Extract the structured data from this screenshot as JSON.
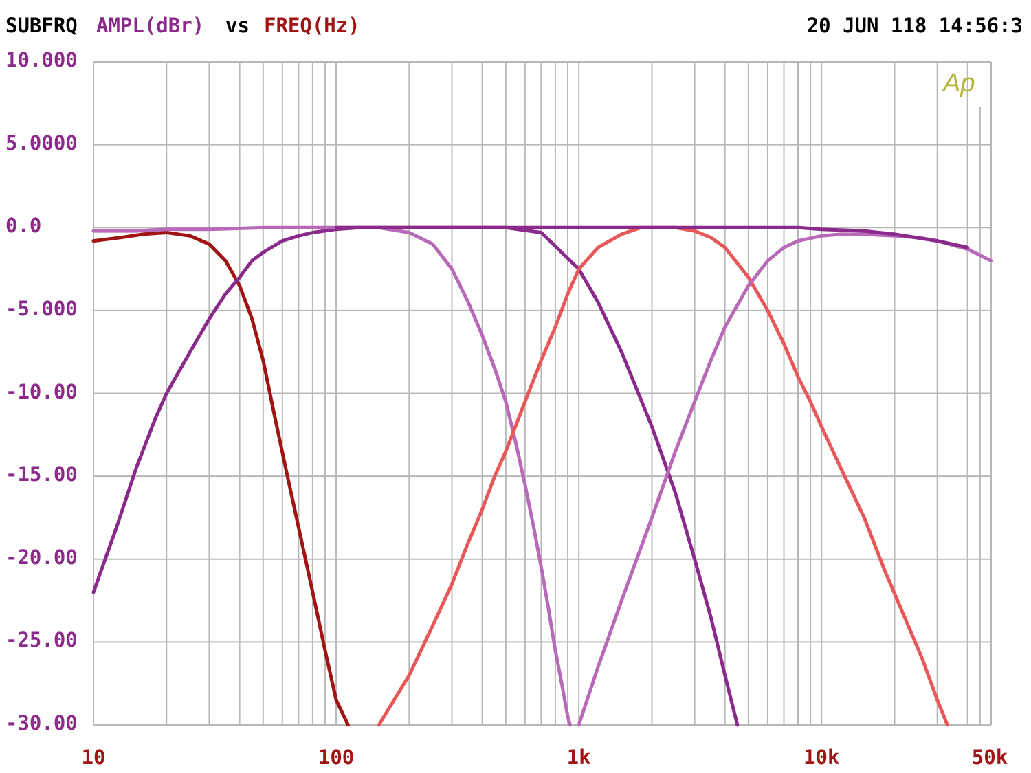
{
  "header": {
    "prefix": "SUBFRQ",
    "y_quantity": "AMPL(dBr)",
    "vs": "vs",
    "x_quantity": "FREQ(Hz)",
    "timestamp": "20 JUN 118 14:56:3"
  },
  "logo": "Ap",
  "colors": {
    "y_text": "#8a2a8a",
    "x_text": "#a01414",
    "grid": "#b8b8b8",
    "logo": "#b4b43c"
  },
  "chart_data": {
    "type": "line",
    "title": "",
    "xlabel": "FREQ(Hz)",
    "ylabel": "AMPL(dBr)",
    "x_scale": "log",
    "xlim": [
      10,
      50000
    ],
    "ylim": [
      -30,
      10
    ],
    "grid": true,
    "y_tick_labels": [
      "10.000",
      "5.0000",
      "0.0",
      "-5.000",
      "-10.00",
      "-15.00",
      "-20.00",
      "-25.00",
      "-30.00"
    ],
    "y_ticks": [
      10,
      5,
      0,
      -5,
      -10,
      -15,
      -20,
      -25,
      -30
    ],
    "x_tick_labels": [
      "10",
      "100",
      "1k",
      "10k",
      "50k"
    ],
    "x_ticks": [
      10,
      100,
      1000,
      10000,
      50000
    ],
    "series": [
      {
        "color": "#a01414",
        "x": [
          10,
          13,
          16,
          20,
          25,
          30,
          35,
          40,
          45,
          50,
          56,
          63,
          71,
          80,
          90,
          100,
          112
        ],
        "y": [
          -0.8,
          -0.6,
          -0.4,
          -0.3,
          -0.5,
          -1.0,
          -2.0,
          -3.5,
          -5.5,
          -8.0,
          -11.5,
          -15.0,
          -18.5,
          -22.0,
          -25.5,
          -28.5,
          -30
        ]
      },
      {
        "color": "#8a2a8a",
        "x": [
          10,
          12.5,
          15,
          18,
          20,
          25,
          30,
          35,
          40,
          45,
          50,
          60,
          70,
          80,
          100,
          125,
          150,
          200,
          300,
          500,
          700,
          1000,
          1200,
          1500,
          2000,
          2500,
          3000,
          3500,
          4000,
          4500
        ],
        "y": [
          -22.0,
          -18.0,
          -14.5,
          -11.5,
          -10.0,
          -7.5,
          -5.5,
          -4.0,
          -3.0,
          -2.0,
          -1.5,
          -0.8,
          -0.5,
          -0.3,
          -0.1,
          0.0,
          0.0,
          0.0,
          0.0,
          0.0,
          -0.3,
          -2.5,
          -4.5,
          -7.5,
          -12.0,
          -16.0,
          -20.0,
          -23.5,
          -27.0,
          -30
        ]
      },
      {
        "color": "#b86ab8",
        "x": [
          10,
          15,
          20,
          30,
          50,
          100,
          150,
          200,
          250,
          300,
          350,
          400,
          450,
          500,
          550,
          600,
          650,
          700,
          750,
          800,
          850,
          900,
          920
        ],
        "y": [
          -0.2,
          -0.2,
          -0.1,
          -0.1,
          0.0,
          0.0,
          0.0,
          -0.3,
          -1.0,
          -2.5,
          -4.5,
          -6.5,
          -8.5,
          -10.5,
          -13.0,
          -15.5,
          -18.0,
          -20.5,
          -23.0,
          -25.5,
          -27.5,
          -29.5,
          -30
        ]
      },
      {
        "color": "#e85858",
        "x": [
          150,
          200,
          250,
          300,
          350,
          400,
          450,
          500,
          600,
          700,
          800,
          900,
          1000,
          1200,
          1500,
          1800,
          2500,
          3000,
          3500,
          4000,
          5000,
          6000,
          7000,
          8000,
          9000,
          10000,
          12000,
          15000,
          18000,
          22000,
          26000,
          30000,
          33000
        ],
        "y": [
          -30,
          -27.0,
          -24.0,
          -21.5,
          -19.0,
          -17.0,
          -15.0,
          -13.5,
          -10.5,
          -8.0,
          -6.0,
          -4.0,
          -2.5,
          -1.2,
          -0.4,
          0.0,
          0.0,
          -0.2,
          -0.6,
          -1.2,
          -3.0,
          -5.0,
          -7.0,
          -9.0,
          -10.5,
          -12.0,
          -14.5,
          -17.5,
          -20.5,
          -23.5,
          -26.0,
          -28.5,
          -30
        ]
      },
      {
        "color": "#b86ab8",
        "x": [
          1000,
          1200,
          1500,
          2000,
          2500,
          3000,
          3500,
          4000,
          5000,
          6000,
          7000,
          8000,
          10000,
          12000,
          15000,
          20000,
          25000,
          30000,
          40000,
          50000
        ],
        "y": [
          -30,
          -26.5,
          -22.5,
          -17.5,
          -13.5,
          -10.5,
          -8.0,
          -6.0,
          -3.5,
          -2.0,
          -1.2,
          -0.8,
          -0.5,
          -0.4,
          -0.4,
          -0.5,
          -0.6,
          -0.8,
          -1.3,
          -2.0
        ]
      },
      {
        "color": "#8a2a8a",
        "x": [
          100,
          500,
          1000,
          3000,
          8000,
          10000,
          15000,
          20000,
          30000,
          40000
        ],
        "y": [
          0.0,
          0.0,
          0.0,
          0.0,
          0.0,
          -0.1,
          -0.2,
          -0.4,
          -0.8,
          -1.2
        ]
      }
    ]
  }
}
